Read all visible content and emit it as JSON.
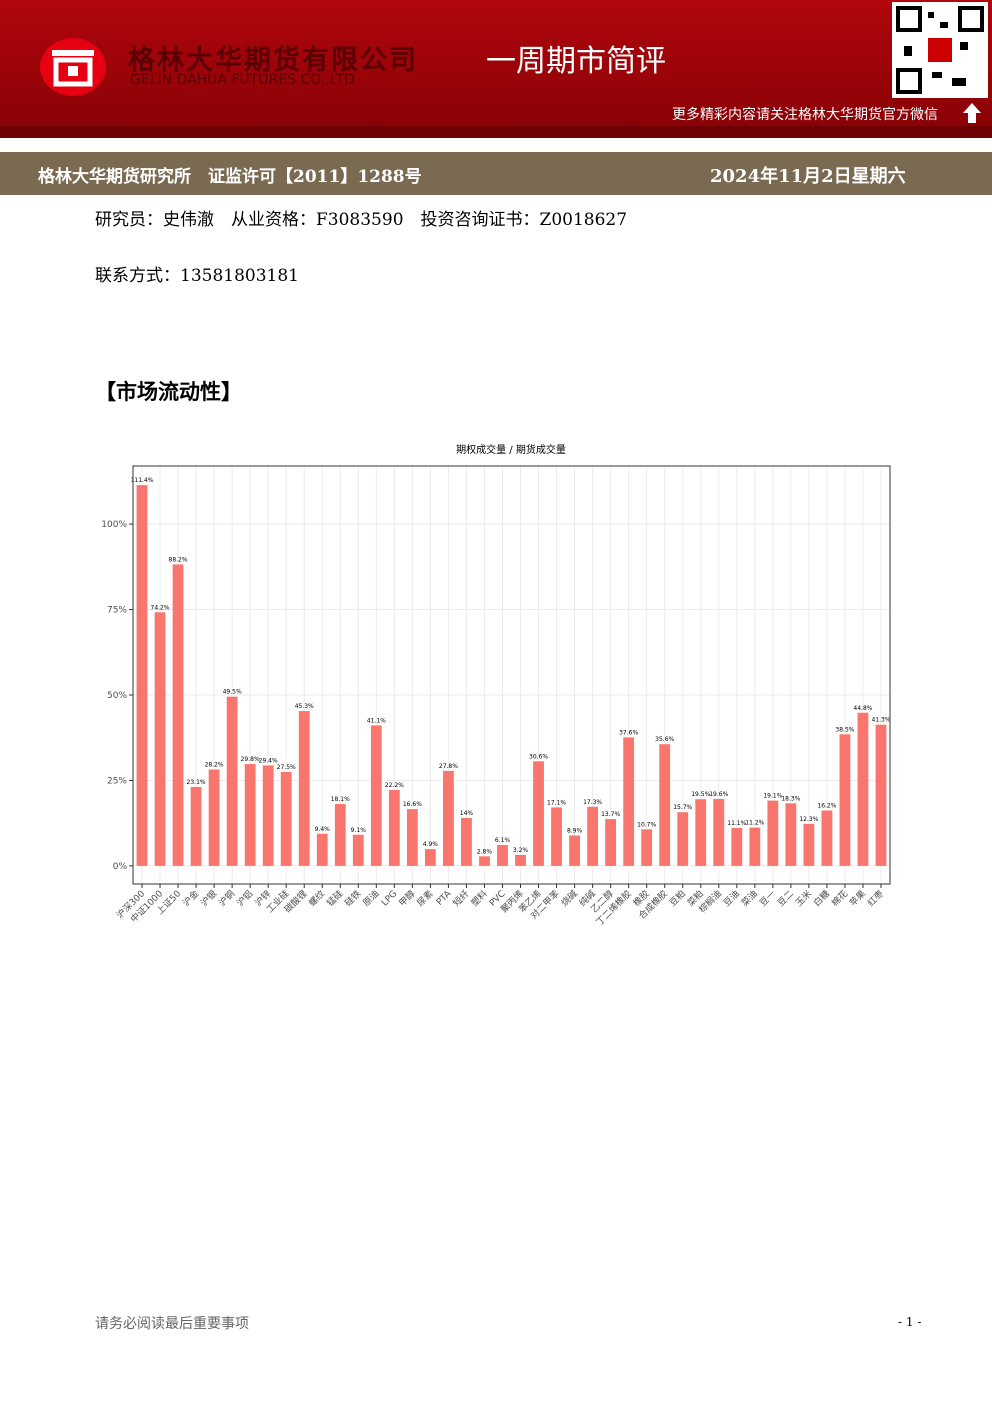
{
  "header": {
    "company": "格林大华期货有限公司",
    "company_en": "GELIN DAHUA FUTURES CO.,LTD",
    "report": "一周期市简评",
    "follow": "更多精彩内容请关注格林大华期货官方微信",
    "institute": "格林大华期货研究所　证监许可【2011】1288号",
    "date": "2024年11月2日星期六"
  },
  "author": "研究员：史伟澈　从业资格：F3083590　投资咨询证书：Z0018627",
  "contact": "联系方式：13581803181",
  "section": "【市场流动性】",
  "footer": {
    "note": "请务必阅读最后重要事项",
    "page": "- 1 -"
  },
  "chart_data": {
    "type": "bar",
    "title": "期权成交量 / 期货成交量",
    "color": "#f8766d",
    "grid": true,
    "categories": [
      "沪深300",
      "中证1000",
      "上证50",
      "沪金",
      "沪银",
      "沪铜",
      "沪铝",
      "沪锌",
      "工业硅",
      "碳酸锂",
      "螺纹",
      "锰硅",
      "硅铁",
      "原油",
      "LPG",
      "甲醇",
      "尿素",
      "PTA",
      "短纤",
      "塑料",
      "PVC",
      "聚丙烯",
      "苯乙烯",
      "对二甲苯",
      "烧碱",
      "纯碱",
      "乙二醇",
      "丁二烯橡胶",
      "橡胶",
      "合成橡胶",
      "豆粕",
      "菜粕",
      "棕榈油",
      "豆油",
      "菜油",
      "豆一",
      "豆二",
      "玉米",
      "白糖",
      "棉花",
      "苹果",
      "红枣"
    ],
    "values": [
      111.4,
      74.2,
      88.2,
      23.1,
      28.2,
      49.5,
      29.8,
      29.4,
      27.5,
      45.3,
      9.4,
      18.1,
      9.1,
      41.1,
      22.2,
      16.6,
      4.9,
      27.8,
      14,
      2.8,
      6.1,
      3.2,
      30.6,
      17.1,
      8.9,
      17.3,
      13.7,
      37.6,
      10.7,
      35.6,
      15.7,
      19.5,
      19.6,
      11.1,
      11.2,
      19.1,
      18.3,
      12.3,
      16.2,
      38.5,
      44.8,
      41.3
    ],
    "value_labels": [
      "111.4%",
      "74.2%",
      "88.2%",
      "23.1%",
      "28.2%",
      "49.5%",
      "29.8%",
      "29.4%",
      "27.5%",
      "45.3%",
      "9.4%",
      "18.1%",
      "9.1%",
      "41.1%",
      "22.2%",
      "16.6%",
      "4.9%",
      "27.8%",
      "14%",
      "2.8%",
      "6.1%",
      "3.2%",
      "30.6%",
      "17.1%",
      "8.9%",
      "17.3%",
      "13.7%",
      "37.6%",
      "10.7%",
      "35.6%",
      "15.7%",
      "19.5%",
      "19.6%",
      "11.1%",
      "11.2%",
      "19.1%",
      "18.3%",
      "12.3%",
      "16.2%",
      "38.5%",
      "44.8%",
      "41.3%"
    ],
    "ylim": [
      -5.3,
      117
    ],
    "yticks": [
      {
        "value": 0,
        "label": "0%"
      },
      {
        "value": 25,
        "label": "25%"
      },
      {
        "value": 50,
        "label": "50%"
      },
      {
        "value": 75,
        "label": "75%"
      },
      {
        "value": 100,
        "label": "100%"
      }
    ]
  }
}
